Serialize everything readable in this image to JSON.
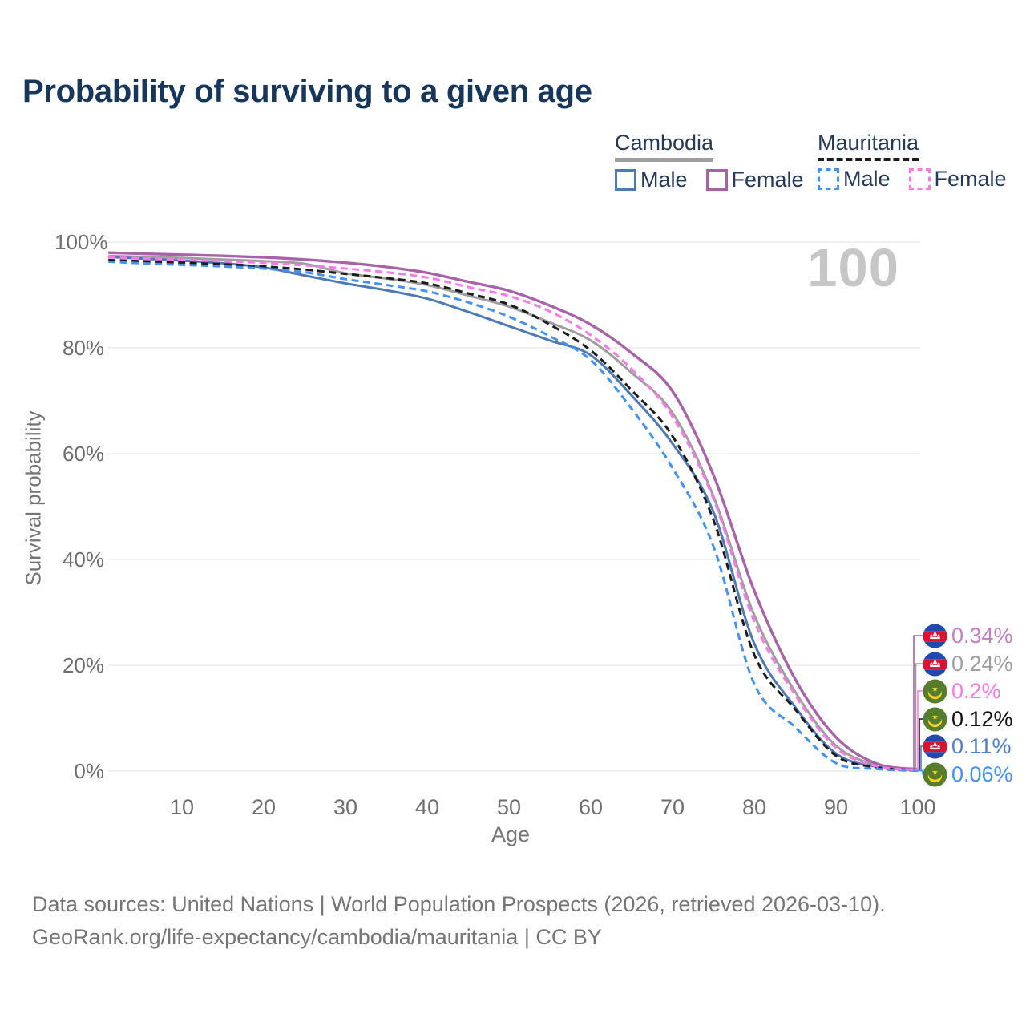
{
  "title": "Probability of surviving to a given age",
  "watermark": "100",
  "legend": {
    "cambodia": {
      "label": "Cambodia",
      "male": "Male",
      "female": "Female"
    },
    "mauritania": {
      "label": "Mauritania",
      "male": "Male",
      "female": "Female"
    }
  },
  "axes": {
    "y_title": "Survival probability",
    "x_title": "Age",
    "y_ticks": [
      "100%",
      "80%",
      "60%",
      "40%",
      "20%",
      "0%"
    ],
    "x_ticks": [
      "10",
      "20",
      "30",
      "40",
      "50",
      "60",
      "70",
      "80",
      "90",
      "100"
    ]
  },
  "colors": {
    "grid": "#ececec",
    "title_text": "#17365c",
    "axis_text": "#757575",
    "watermark": "#c6c6c6"
  },
  "chart_data": {
    "type": "line",
    "title": "Probability of surviving to a given age",
    "xlabel": "Age",
    "ylabel": "Survival probability",
    "xlim": [
      0,
      108
    ],
    "ylim": [
      0,
      100
    ],
    "grid": true,
    "legend_position": "top-right",
    "x": [
      1,
      5,
      10,
      15,
      20,
      25,
      30,
      35,
      40,
      45,
      50,
      55,
      60,
      65,
      70,
      75,
      80,
      85,
      90,
      95,
      100
    ],
    "series": [
      {
        "id": "cambodia_total",
        "name": "Cambodia (both sexes)",
        "country": "Cambodia",
        "sex": "all",
        "color": "#9e9e9e",
        "dash": false,
        "values": [
          97.4,
          97.2,
          97.0,
          96.7,
          96.4,
          95.9,
          94.1,
          93.1,
          91.9,
          89.9,
          87.8,
          84.8,
          81.4,
          75.3,
          67.7,
          52.0,
          29.5,
          15.0,
          4.8,
          1.1,
          0.24
        ]
      },
      {
        "id": "cambodia_male",
        "name": "Cambodia Male",
        "country": "Cambodia",
        "sex": "male",
        "color": "#4e79b7",
        "dash": false,
        "values": [
          97.2,
          96.9,
          96.5,
          96.0,
          95.2,
          93.7,
          92.2,
          90.9,
          89.3,
          86.8,
          84.1,
          81.4,
          78.6,
          71.0,
          61.9,
          49.0,
          24.1,
          12.1,
          3.3,
          0.8,
          0.11
        ]
      },
      {
        "id": "cambodia_female",
        "name": "Cambodia Female",
        "country": "Cambodia",
        "sex": "female",
        "color": "#a863a8",
        "dash": false,
        "values": [
          98.0,
          97.8,
          97.6,
          97.4,
          97.1,
          96.7,
          96.1,
          95.3,
          94.2,
          92.5,
          90.8,
          88.0,
          84.4,
          79.0,
          71.8,
          56.0,
          34.1,
          17.4,
          6.4,
          1.4,
          0.34
        ]
      },
      {
        "id": "mauritania_total",
        "name": "Mauritania (both sexes)",
        "country": "Mauritania",
        "sex": "all",
        "color": "#1c1c1c",
        "dash": true,
        "values": [
          96.6,
          96.4,
          96.1,
          95.8,
          95.4,
          94.8,
          94.0,
          93.2,
          92.2,
          90.3,
          88.2,
          84.4,
          79.5,
          72.0,
          63.3,
          47.5,
          22.0,
          11.7,
          2.9,
          0.7,
          0.12
        ]
      },
      {
        "id": "mauritania_male",
        "name": "Mauritania Male",
        "country": "Mauritania",
        "sex": "male",
        "color": "#4191fa",
        "dash": true,
        "values": [
          96.3,
          96.0,
          95.7,
          95.4,
          95.0,
          94.3,
          93.0,
          91.9,
          90.7,
          88.6,
          85.9,
          82.2,
          77.7,
          68.5,
          57.3,
          42.5,
          16.5,
          8.3,
          1.5,
          0.4,
          0.06
        ]
      },
      {
        "id": "mauritania_female",
        "name": "Mauritania Female",
        "country": "Mauritania",
        "sex": "female",
        "color": "#fb78e8",
        "dash": true,
        "values": [
          97.1,
          96.9,
          96.7,
          96.4,
          96.1,
          95.6,
          95.0,
          94.3,
          93.3,
          91.5,
          89.8,
          86.9,
          82.4,
          76.0,
          67.0,
          51.5,
          28.3,
          14.4,
          4.4,
          0.9,
          0.2
        ]
      }
    ],
    "end_labels": [
      {
        "flag": "cambodia",
        "series_id": "cambodia_female",
        "value": 0.34,
        "text": "0.34%",
        "text_color": "#c17fc3"
      },
      {
        "flag": "cambodia",
        "series_id": "cambodia_total",
        "value": 0.24,
        "text": "0.24%",
        "text_color": "#9e9e9e"
      },
      {
        "flag": "mauritania",
        "series_id": "mauritania_female",
        "value": 0.2,
        "text": "0.2%",
        "text_color": "#fb78e8"
      },
      {
        "flag": "mauritania",
        "series_id": "mauritania_total",
        "value": 0.12,
        "text": "0.12%",
        "text_color": "#111111"
      },
      {
        "flag": "cambodia",
        "series_id": "cambodia_male",
        "value": 0.11,
        "text": "0.11%",
        "text_color": "#4e7fc7"
      },
      {
        "flag": "mauritania",
        "series_id": "mauritania_male",
        "value": 0.06,
        "text": "0.06%",
        "text_color": "#4191fa"
      }
    ]
  },
  "footer": {
    "line1": "Data sources: United Nations | World Population Prospects (2026, retrieved 2026-03-10).",
    "line2": "GeoRank.org/life-expectancy/cambodia/mauritania | CC BY"
  }
}
